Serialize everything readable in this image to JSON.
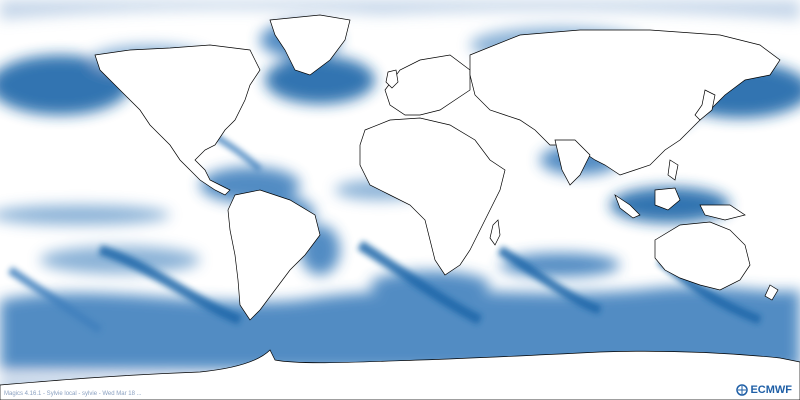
{
  "map": {
    "projection": "equirectangular",
    "field_colors": [
      "#ffffff",
      "#e6e2ef",
      "#bfd2e7",
      "#7faad3",
      "#3f80bd",
      "#1a66a9"
    ],
    "coastline_color": "#000000",
    "background_color": "#ffffff"
  },
  "footer": {
    "caption": "Magics 4.16.1 - Sylvie local - sylvie - Wed Mar 18 ..."
  },
  "logo": {
    "text": "ECMWF",
    "icon": "ecmwf-logo-icon",
    "color": "#1f5fa6"
  }
}
